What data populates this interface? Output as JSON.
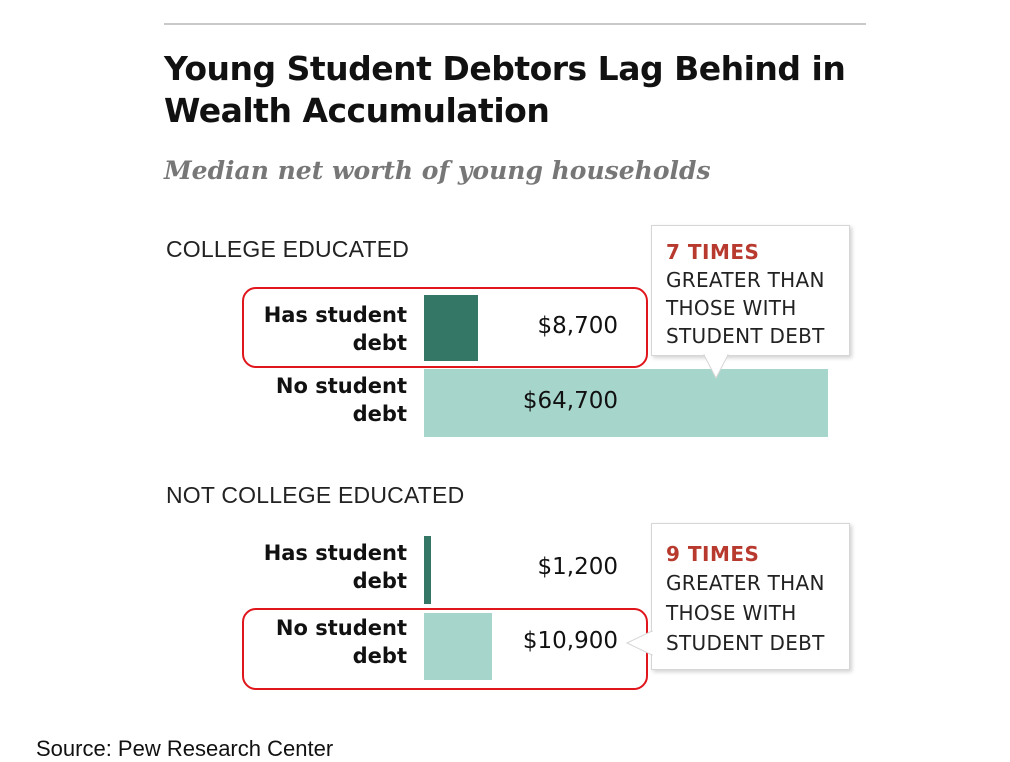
{
  "chart_data": {
    "type": "bar",
    "title": "Young Student Debtors Lag Behind in Wealth Accumulation",
    "subtitle": "Median net worth of young households",
    "unit": "$",
    "groups": [
      {
        "name": "COLLEGE EDUCATED",
        "rows": [
          {
            "label_line1": "Has student",
            "label_line2": "debt",
            "value": 8700,
            "display": "$8,700",
            "color": "#357766",
            "highlighted": true
          },
          {
            "label_line1": "No student",
            "label_line2": "debt",
            "value": 64700,
            "display": "$64,700",
            "color": "#a6d6cb",
            "highlighted": false
          }
        ],
        "callout": {
          "times": "7 TIMES",
          "desc": "GREATER THAN\nTHOSE WITH\nSTUDENT DEBT"
        }
      },
      {
        "name": "NOT COLLEGE EDUCATED",
        "rows": [
          {
            "label_line1": "Has student",
            "label_line2": "debt",
            "value": 1200,
            "display": "$1,200",
            "color": "#357766",
            "highlighted": false
          },
          {
            "label_line1": "No student",
            "label_line2": "debt",
            "value": 10900,
            "display": "$10,900",
            "color": "#a6d6cb",
            "highlighted": true
          }
        ],
        "callout": {
          "times": "9 TIMES",
          "desc": "GREATER THAN\nTHOSE WITH\nSTUDENT DEBT"
        }
      }
    ],
    "max_value": 64700
  },
  "source": "Source: Pew Research Center",
  "colors": {
    "highlight": "#e0161c",
    "callout_times": "#b8392d"
  }
}
